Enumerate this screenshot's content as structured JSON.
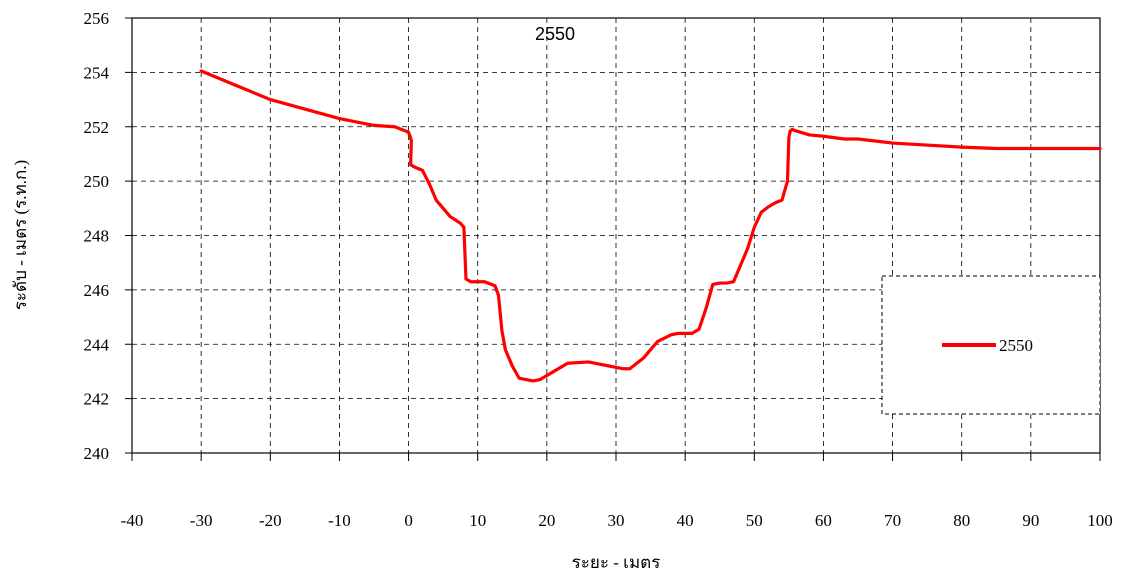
{
  "chart_data": {
    "type": "line",
    "title": "2550",
    "xlabel": "ระยะ - เมตร",
    "ylabel": "ระดับ - เมตร (ร.ท.ก.)",
    "xlim": [
      -40,
      100
    ],
    "ylim": [
      240,
      256
    ],
    "x_ticks": [
      "-40",
      "-30",
      "-20",
      "-10",
      "0",
      "10",
      "20",
      "30",
      "40",
      "50",
      "60",
      "70",
      "80",
      "90",
      "100"
    ],
    "y_ticks": [
      "240",
      "242",
      "244",
      "246",
      "248",
      "250",
      "252",
      "254",
      "256"
    ],
    "grid": true,
    "legend_position": "right",
    "colors": {
      "series": "#ff0000",
      "grid": "#000000"
    },
    "series": [
      {
        "name": "2550",
        "x": [
          -30,
          -20,
          -10,
          -5,
          -2,
          0,
          0.4,
          0.3,
          1,
          2,
          3,
          4,
          6,
          7.5,
          8,
          8.3,
          9,
          11,
          12.5,
          13,
          13.5,
          14,
          15,
          16,
          18,
          19,
          21,
          23,
          26,
          29,
          31,
          32,
          34,
          36,
          38,
          39,
          41,
          42,
          43,
          44,
          45,
          46,
          47,
          48,
          49,
          50,
          51,
          52,
          53,
          54,
          54.8,
          55,
          55.2,
          55.5,
          56,
          58,
          60,
          63,
          65,
          70,
          80,
          85,
          100
        ],
        "y": [
          254.05,
          253.0,
          252.3,
          252.05,
          252.0,
          251.8,
          251.5,
          250.6,
          250.5,
          250.4,
          249.9,
          249.3,
          248.7,
          248.45,
          248.3,
          246.4,
          246.3,
          246.3,
          246.15,
          245.8,
          244.5,
          243.8,
          243.2,
          242.75,
          242.65,
          242.7,
          243.0,
          243.3,
          243.35,
          243.2,
          243.1,
          243.1,
          243.5,
          244.1,
          244.35,
          244.4,
          244.4,
          244.55,
          245.3,
          246.2,
          246.25,
          246.25,
          246.3,
          246.9,
          247.5,
          248.3,
          248.85,
          249.05,
          249.2,
          249.3,
          250.0,
          251.6,
          251.85,
          251.9,
          251.85,
          251.7,
          251.65,
          251.55,
          251.55,
          251.4,
          251.25,
          251.2,
          251.2
        ]
      }
    ],
    "legend": {
      "entries": [
        "2550"
      ]
    }
  }
}
